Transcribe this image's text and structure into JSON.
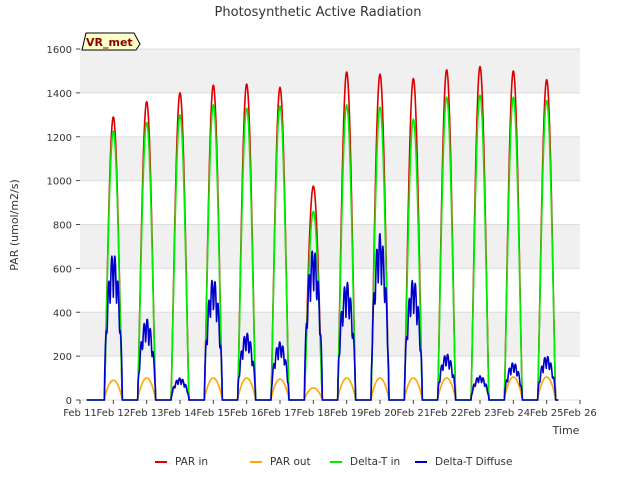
{
  "chart_data": {
    "type": "line",
    "title": "Photosynthetic Active Radiation",
    "xlabel": "Time",
    "ylabel": "PAR (umol/m2/s)",
    "ylim": [
      0,
      1600
    ],
    "yticks": [
      0,
      200,
      400,
      600,
      800,
      1000,
      1200,
      1400,
      1600
    ],
    "xlim": [
      11,
      26
    ],
    "xtick_labels": [
      "Feb 11",
      "Feb 12",
      "Feb 13",
      "Feb 14",
      "Feb 15",
      "Feb 16",
      "Feb 17",
      "Feb 18",
      "Feb 19",
      "Feb 20",
      "Feb 21",
      "Feb 22",
      "Feb 23",
      "Feb 24",
      "Feb 25",
      "Feb 26"
    ],
    "grid": true,
    "legend_placement": "bottom",
    "badge": "VR_met",
    "days": [
      12,
      13,
      14,
      15,
      16,
      17,
      18,
      19,
      20,
      21,
      22,
      23,
      24,
      25
    ],
    "series": [
      {
        "name": "PAR in",
        "color": "#dd0000",
        "peaks": [
          1290,
          1360,
          1400,
          1435,
          1440,
          1425,
          975,
          1495,
          1485,
          1465,
          1505,
          1520,
          1500,
          1460
        ]
      },
      {
        "name": "PAR out",
        "color": "#ffa500",
        "peaks": [
          90,
          100,
          95,
          100,
          100,
          95,
          55,
          100,
          100,
          100,
          100,
          100,
          105,
          105
        ]
      },
      {
        "name": "Delta-T in",
        "color": "#00ee00",
        "peaks": [
          1225,
          1265,
          1300,
          1345,
          1330,
          1340,
          860,
          1345,
          1335,
          1280,
          1380,
          1390,
          1380,
          1365
        ]
      },
      {
        "name": "Delta-T Diffuse",
        "color": "#0000cc",
        "peaks": [
          670,
          370,
          100,
          555,
          305,
          265,
          690,
          540,
          760,
          550,
          210,
          110,
          170,
          200
        ]
      }
    ]
  }
}
